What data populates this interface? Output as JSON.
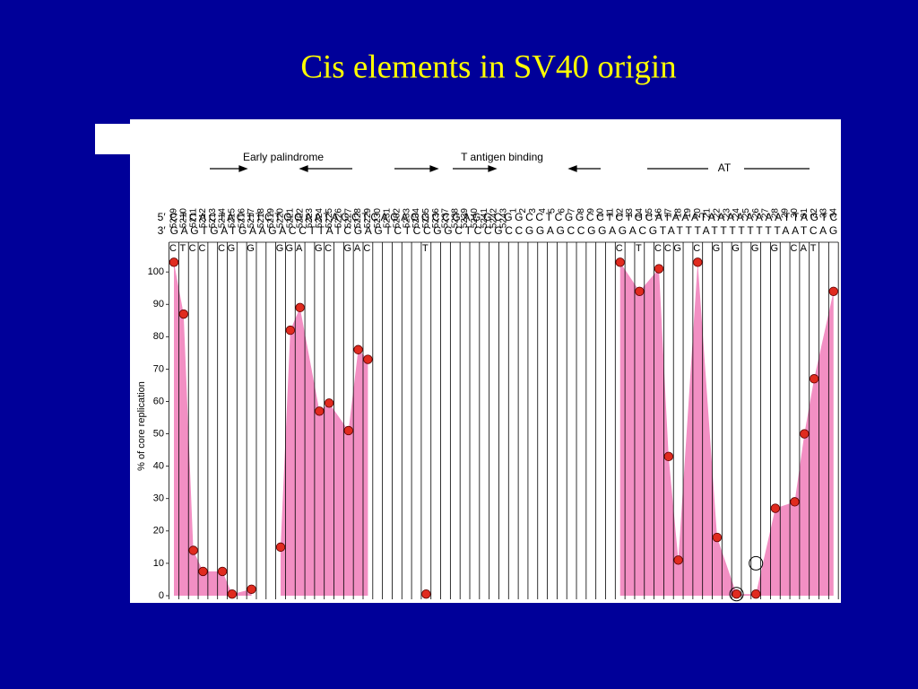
{
  "title": "Cis elements in SV40 origin",
  "chart_data": {
    "type": "area",
    "ylabel": "% of core replication",
    "annotations": {
      "early": "Early palindrome",
      "tag": "T antigen binding",
      "at": "AT"
    },
    "strand_top": {
      "label": "5′",
      "sequence": "CTCACTACTTCTGGAATAGCTCAGAGGCCGAGGCGGCCTCGGCCTCTGCATAAATAAAAAAAATTAGTC"
    },
    "strand_bottom": {
      "label": "3′",
      "sequence": "GAGTGATGAAGACCTTATCGAGTCTCCGGCTCCGCCGGAGCCGGAGACGTATTTATTTTTTTTAATCAG"
    },
    "categories": [
      5209,
      5210,
      5211,
      5212,
      5213,
      5214,
      5215,
      5216,
      5217,
      5218,
      5219,
      5220,
      5221,
      5222,
      5223,
      5224,
      5225,
      5226,
      5227,
      5228,
      5229,
      5230,
      5231,
      5232,
      5233,
      5234,
      5235,
      5236,
      5237,
      5238,
      5239,
      5240,
      5241,
      5242,
      5243,
      1,
      2,
      3,
      4,
      5,
      6,
      7,
      8,
      9,
      10,
      11,
      12,
      13,
      14,
      15,
      16,
      17,
      18,
      19,
      20,
      21,
      22,
      23,
      24,
      25,
      26,
      27,
      28,
      29,
      30,
      31,
      32,
      33,
      34
    ],
    "mutations": [
      "C",
      "T",
      "C",
      "C",
      null,
      "C",
      "G",
      null,
      "G",
      null,
      null,
      "G",
      "G",
      "A",
      null,
      "G",
      "C",
      null,
      "G",
      "A",
      "C",
      null,
      null,
      null,
      null,
      null,
      "T",
      null,
      null,
      null,
      null,
      null,
      null,
      null,
      null,
      null,
      null,
      null,
      null,
      null,
      null,
      null,
      null,
      null,
      null,
      null,
      "C",
      null,
      "T",
      null,
      "C",
      "C",
      "G",
      null,
      "C",
      null,
      "G",
      null,
      "G",
      null,
      "G",
      null,
      "G",
      null,
      "C",
      "A",
      "T",
      null,
      null
    ],
    "values": [
      103,
      87,
      14,
      7.5,
      null,
      7.5,
      0.5,
      null,
      2,
      null,
      null,
      15,
      82,
      89,
      null,
      57,
      59.5,
      null,
      51,
      76,
      73,
      null,
      null,
      null,
      null,
      null,
      0.5,
      null,
      null,
      null,
      null,
      null,
      null,
      null,
      null,
      null,
      null,
      null,
      null,
      null,
      null,
      null,
      null,
      null,
      null,
      null,
      103,
      null,
      94,
      null,
      101,
      43,
      11,
      null,
      103,
      null,
      18,
      null,
      0.5,
      null,
      0.5,
      null,
      27,
      null,
      29,
      50,
      67,
      null,
      94
    ],
    "open_circles": [
      null,
      null,
      null,
      null,
      null,
      null,
      null,
      null,
      null,
      null,
      null,
      null,
      null,
      null,
      null,
      null,
      null,
      null,
      null,
      null,
      null,
      null,
      null,
      null,
      null,
      null,
      null,
      null,
      null,
      null,
      null,
      null,
      null,
      null,
      null,
      null,
      null,
      null,
      null,
      null,
      null,
      null,
      null,
      null,
      null,
      null,
      null,
      null,
      null,
      null,
      null,
      null,
      null,
      null,
      null,
      null,
      null,
      null,
      0.5,
      null,
      10,
      null,
      null,
      null,
      null,
      null,
      null,
      null,
      null
    ],
    "color": "#f28fc3",
    "dot_color": "#e02b1f",
    "ylim": [
      0,
      105
    ],
    "yticks": [
      0,
      10,
      20,
      30,
      40,
      50,
      60,
      70,
      80,
      90,
      100
    ]
  }
}
